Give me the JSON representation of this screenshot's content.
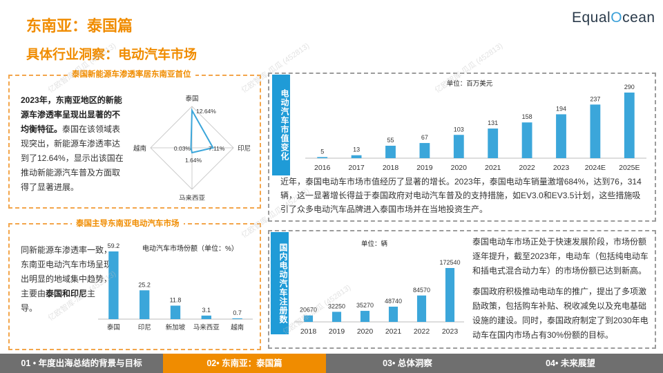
{
  "header": {
    "title": "东南亚：泰国篇",
    "subtitle": "具体行业洞察：电动汽车市场",
    "logo_pre": "Equal",
    "logo_o": "O",
    "logo_post": "cean"
  },
  "watermark": "亿欧智库-瓜瓜 (452813)",
  "colors": {
    "accent": "#F08C00",
    "bar": "#3BA6DA",
    "tab": "#1F9BD7"
  },
  "panel_penetration": {
    "title": "泰国新能源车渗透率居东南亚首位",
    "text_bold": "2023年，东南亚地区的新能源车渗透率呈现出显著的不均衡特征。",
    "text_rest": "泰国在该领域表现突出，新能源车渗透率达到了12.64%，显示出该国在推动新能源汽车普及方面取得了显著进展。"
  },
  "panel_share": {
    "title": "泰国主导东南亚电动汽车市场",
    "text_rest": "同新能源车渗透率一致，东南亚电动汽车市场呈现出明显的地域集中趋势，主要由",
    "text_bold": "泰国和印尼",
    "text_end": "主导。"
  },
  "panel_value": {
    "tab": "电动汽车市值变化",
    "text": "近年，泰国电动车市场市值经历了显著的增长。2023年，泰国电动车销量激增684%，达到76，314辆，这一显著增长得益于泰国政府对电动汽车普及的支持措施，如EV3.0和EV3.5计划，这些措施吸引了众多电动汽车品牌进入泰国市场并在当地投资生产。"
  },
  "panel_reg": {
    "tab": "国内电动汽车注册数",
    "text1": "泰国电动车市场正处于快速发展阶段，市场份额逐年提升，截至2023年，电动车（包括纯电动车和插电式混合动力车）的市场份额已达到新高。",
    "text2": "泰国政府积极推动电动车的推广，提出了多项激励政策，包括购车补贴、税收减免以及充电基础设施的建设。同时，泰国政府制定了到2030年电动车在国内市场占有30%份额的目标。"
  },
  "footer": {
    "tabs": [
      {
        "label": "01 • 年度出海总结的背景与目标"
      },
      {
        "label": "02• 东南亚：泰国篇"
      },
      {
        "label": "03• 总体洞察"
      },
      {
        "label": "04• 未来展望"
      }
    ],
    "active_index": 1
  },
  "chart_data": [
    {
      "type": "radar",
      "axes": [
        "泰国",
        "印尼",
        "马来西亚",
        "越南"
      ],
      "values": [
        12.64,
        7.11,
        1.64,
        0.03
      ],
      "value_labels": [
        "12.64%",
        "7.11%",
        "1.64%",
        "0.03%"
      ],
      "unit": "%",
      "color": "#3BA6DA"
    },
    {
      "type": "bar",
      "title": "电动汽车市场份额（单位：%）",
      "categories": [
        "泰国",
        "印尼",
        "新加坡",
        "马来西亚",
        "越南"
      ],
      "values": [
        59.2,
        25.2,
        11.8,
        3.1,
        0.7
      ],
      "value_labels": [
        "59.2",
        "25.2",
        "11.8",
        "3.1",
        "0.7"
      ],
      "color": "#3BA6DA"
    },
    {
      "type": "bar",
      "title": "单位：百万美元",
      "categories": [
        "2016",
        "2017",
        "2018",
        "2019",
        "2020",
        "2021",
        "2022",
        "2023",
        "2024E",
        "2025E"
      ],
      "values": [
        5,
        13,
        55,
        67,
        103,
        131,
        158,
        194,
        237,
        290
      ],
      "value_labels": [
        "5",
        "13",
        "55",
        "67",
        "103",
        "131",
        "158",
        "194",
        "237",
        "290"
      ],
      "color": "#3BA6DA"
    },
    {
      "type": "bar",
      "title": "单位：辆",
      "categories": [
        "2018",
        "2019",
        "2020",
        "2021",
        "2022",
        "2023"
      ],
      "values": [
        20670,
        32250,
        35270,
        48740,
        84570,
        172540
      ],
      "value_labels": [
        "20670",
        "32250",
        "35270",
        "48740",
        "84570",
        "172540"
      ],
      "color": "#3BA6DA"
    }
  ]
}
